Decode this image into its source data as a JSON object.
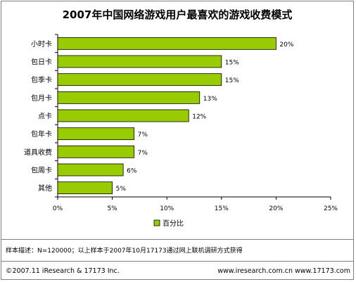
{
  "chart_data": {
    "type": "bar",
    "orientation": "horizontal",
    "title": "2007年中国网络游戏用户最喜欢的游戏收费模式",
    "categories": [
      "小时卡",
      "包日卡",
      "包季卡",
      "包月卡",
      "点卡",
      "包年卡",
      "道具收费",
      "包周卡",
      "其他"
    ],
    "series": [
      {
        "name": "百分比",
        "values": [
          20,
          15,
          15,
          13,
          12,
          7,
          7,
          6,
          5
        ]
      }
    ],
    "value_labels": [
      "20%",
      "15%",
      "15%",
      "13%",
      "12%",
      "7%",
      "7%",
      "6%",
      "5%"
    ],
    "xlim": [
      0,
      25
    ],
    "x_ticks": [
      0,
      5,
      10,
      15,
      20,
      25
    ],
    "x_tick_labels": [
      "0%",
      "5%",
      "10%",
      "15%",
      "20%",
      "25%"
    ],
    "legend_position": "bottom",
    "grid": false,
    "bar_color": "#99cc00",
    "bar_border_color": "#000000"
  },
  "note": "样本描述：N=120000；以上样本于2007年10月17173通过网上联机调研方式获得",
  "footer": {
    "copyright": "©2007.11 iResearch & 17173 Inc.",
    "websites": "www.iresearch.com.cn  www.17173.com"
  }
}
